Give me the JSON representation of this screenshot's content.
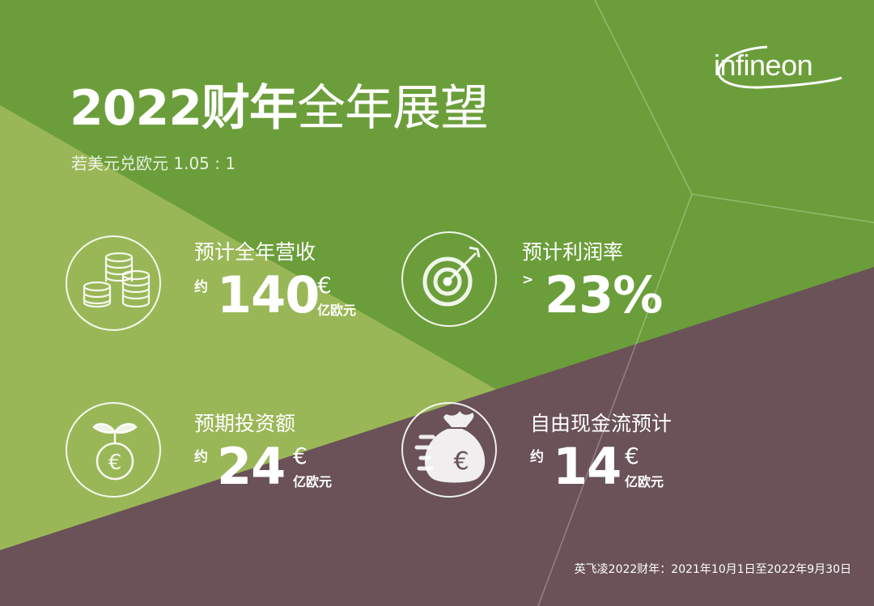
{
  "brand": {
    "logo_text": "infineon"
  },
  "header": {
    "title_bold": "2022财年",
    "title_light": "全年展望",
    "subtitle": "若美元兑欧元 1.05 : 1"
  },
  "metrics": [
    {
      "label": "预计全年营收",
      "prefix": "约",
      "value": "140",
      "currency": "€",
      "unit": "亿欧元",
      "icon": "coins-icon"
    },
    {
      "label": "预计利润率",
      "prefix": ">",
      "value": "23%",
      "icon": "target-icon"
    },
    {
      "label": "预期投资额",
      "prefix": "约",
      "value": "24",
      "currency": "€",
      "unit": "亿欧元",
      "icon": "sprout-coin-icon"
    },
    {
      "label": "自由现金流预计",
      "prefix": "约",
      "value": "14",
      "currency": "€",
      "unit": "亿欧元",
      "icon": "money-bag-icon"
    }
  ],
  "footer": {
    "note": "英飞凌2022财年：2021年10月1日至2022年9月30日"
  },
  "colors": {
    "dark_green": "#6b9e3a",
    "light_green": "#9ab757",
    "mauve": "#6a5258",
    "text": "#ffffff"
  }
}
